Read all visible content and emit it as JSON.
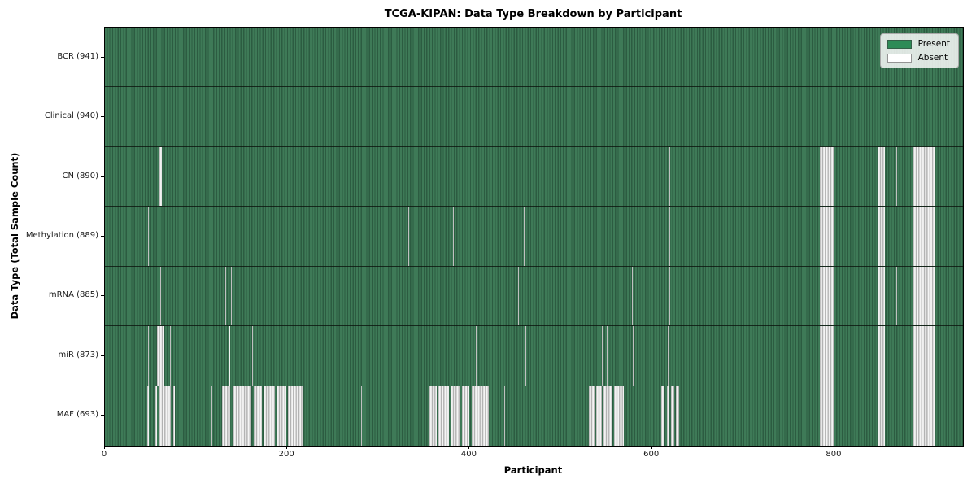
{
  "title": "TCGA-KIPAN: Data Type Breakdown by Participant",
  "x_axis_label": "Participant",
  "y_axis_label": "Data Type (Total Sample Count)",
  "legend": {
    "present": "Present",
    "absent": "Absent"
  },
  "colors": {
    "present_green": "#2e8b57",
    "present_stripe_light": "#3e7a57",
    "present_stripe_dark": "#2c5c41",
    "absent_white": "#ffffff",
    "absent_gray": "#9f9f9f"
  },
  "chart_data": {
    "type": "heatmap",
    "title": "TCGA-KIPAN: Data Type Breakdown by Participant",
    "xlabel": "Participant",
    "ylabel": "Data Type (Total Sample Count)",
    "legend_entries": [
      {
        "label": "Present",
        "color": "#2e8b57"
      },
      {
        "label": "Absent",
        "color": "#ffffff"
      }
    ],
    "legend_position": "upper right",
    "grid": false,
    "x_range": [
      0,
      941
    ],
    "x_ticks": [
      0,
      200,
      400,
      600,
      800
    ],
    "rows": [
      {
        "label": "BCR (941)",
        "data_type": "BCR",
        "present_count": 941,
        "absent_count": 0,
        "absent_ranges": []
      },
      {
        "label": "Clinical (940)",
        "data_type": "Clinical",
        "present_count": 940,
        "absent_count": 1,
        "absent_ranges": [
          [
            207,
            208
          ]
        ]
      },
      {
        "label": "CN (890)",
        "data_type": "CN",
        "present_count": 890,
        "absent_count": 51,
        "absent_ranges": [
          [
            60,
            62
          ],
          [
            619,
            620
          ],
          [
            784,
            799
          ],
          [
            847,
            855
          ],
          [
            868,
            869
          ],
          [
            887,
            911
          ]
        ]
      },
      {
        "label": "Methylation (889)",
        "data_type": "Methylation",
        "present_count": 889,
        "absent_count": 52,
        "absent_ranges": [
          [
            47,
            48
          ],
          [
            333,
            334
          ],
          [
            382,
            383
          ],
          [
            459,
            460
          ],
          [
            619,
            620
          ],
          [
            784,
            799
          ],
          [
            847,
            855
          ],
          [
            887,
            911
          ]
        ]
      },
      {
        "label": "mRNA (885)",
        "data_type": "mRNA",
        "present_count": 885,
        "absent_count": 56,
        "absent_ranges": [
          [
            61,
            62
          ],
          [
            132,
            133
          ],
          [
            138,
            139
          ],
          [
            341,
            342
          ],
          [
            453,
            454
          ],
          [
            578,
            579
          ],
          [
            584,
            585
          ],
          [
            619,
            620
          ],
          [
            784,
            799
          ],
          [
            847,
            855
          ],
          [
            868,
            869
          ],
          [
            887,
            911
          ]
        ]
      },
      {
        "label": "miR (873)",
        "data_type": "miR",
        "present_count": 873,
        "absent_count": 68,
        "absent_ranges": [
          [
            47,
            48
          ],
          [
            57,
            59
          ],
          [
            60,
            65
          ],
          [
            71,
            72
          ],
          [
            136,
            137
          ],
          [
            161,
            162
          ],
          [
            365,
            366
          ],
          [
            389,
            390
          ],
          [
            407,
            408
          ],
          [
            432,
            433
          ],
          [
            461,
            462
          ],
          [
            545,
            546
          ],
          [
            550,
            552
          ],
          [
            579,
            580
          ],
          [
            617,
            618
          ],
          [
            784,
            799
          ],
          [
            847,
            855
          ],
          [
            887,
            911
          ]
        ]
      },
      {
        "label": "MAF (693)",
        "data_type": "MAF",
        "present_count": 693,
        "absent_count": 248,
        "absent_ranges": [
          [
            46,
            48
          ],
          [
            55,
            57
          ],
          [
            60,
            72
          ],
          [
            75,
            77
          ],
          [
            117,
            118
          ],
          [
            128,
            137
          ],
          [
            141,
            160
          ],
          [
            163,
            172
          ],
          [
            174,
            186
          ],
          [
            188,
            199
          ],
          [
            201,
            217
          ],
          [
            281,
            282
          ],
          [
            356,
            364
          ],
          [
            366,
            377
          ],
          [
            379,
            390
          ],
          [
            392,
            400
          ],
          [
            402,
            421
          ],
          [
            438,
            439
          ],
          [
            465,
            466
          ],
          [
            531,
            537
          ],
          [
            539,
            545
          ],
          [
            547,
            556
          ],
          [
            558,
            569
          ],
          [
            610,
            614
          ],
          [
            616,
            619
          ],
          [
            621,
            624
          ],
          [
            626,
            630
          ],
          [
            784,
            799
          ],
          [
            847,
            855
          ],
          [
            887,
            911
          ]
        ]
      }
    ]
  }
}
